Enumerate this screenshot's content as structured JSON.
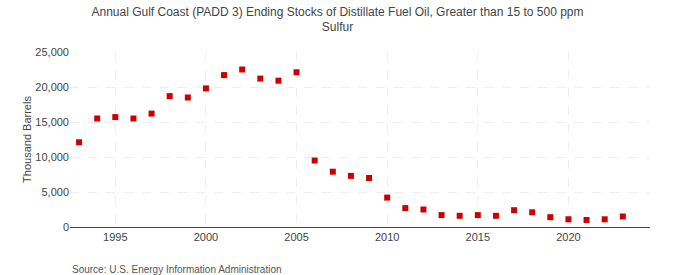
{
  "chart_data": {
    "type": "scatter",
    "title": "Annual Gulf Coast (PADD 3) Ending Stocks of Distillate Fuel Oil, Greater than 15 to 500 ppm\nSulfur",
    "y_label": "Thousand Barrels",
    "source": "Source: U.S. Energy Information Administration",
    "x": [
      1993,
      1994,
      1995,
      1996,
      1997,
      1998,
      1999,
      2000,
      2001,
      2002,
      2003,
      2004,
      2005,
      2006,
      2007,
      2008,
      2009,
      2010,
      2011,
      2012,
      2013,
      2014,
      2015,
      2016,
      2017,
      2018,
      2019,
      2020,
      2021,
      2022,
      2023
    ],
    "values": [
      12100,
      15500,
      15700,
      15500,
      16200,
      18700,
      18500,
      19800,
      21700,
      22500,
      21200,
      20900,
      22100,
      9500,
      7900,
      7300,
      7000,
      4200,
      2700,
      2500,
      1700,
      1600,
      1700,
      1600,
      2400,
      2100,
      1400,
      1100,
      1000,
      1100,
      1500
    ],
    "color": "#cc0000",
    "marker": "square",
    "xlim": [
      1992.5,
      2024.5
    ],
    "xticks": [
      1995,
      2000,
      2005,
      2010,
      2015,
      2020
    ],
    "ylim": [
      0,
      25000
    ],
    "yticks": [
      0,
      {
        "value": 5000,
        "label": "5,000"
      },
      {
        "value": 10000,
        "label": "10,000"
      },
      {
        "value": 15000,
        "label": "15,000"
      },
      {
        "value": 20000,
        "label": "20,000"
      },
      {
        "value": 25000,
        "label": "25,000"
      }
    ],
    "grid": true
  }
}
